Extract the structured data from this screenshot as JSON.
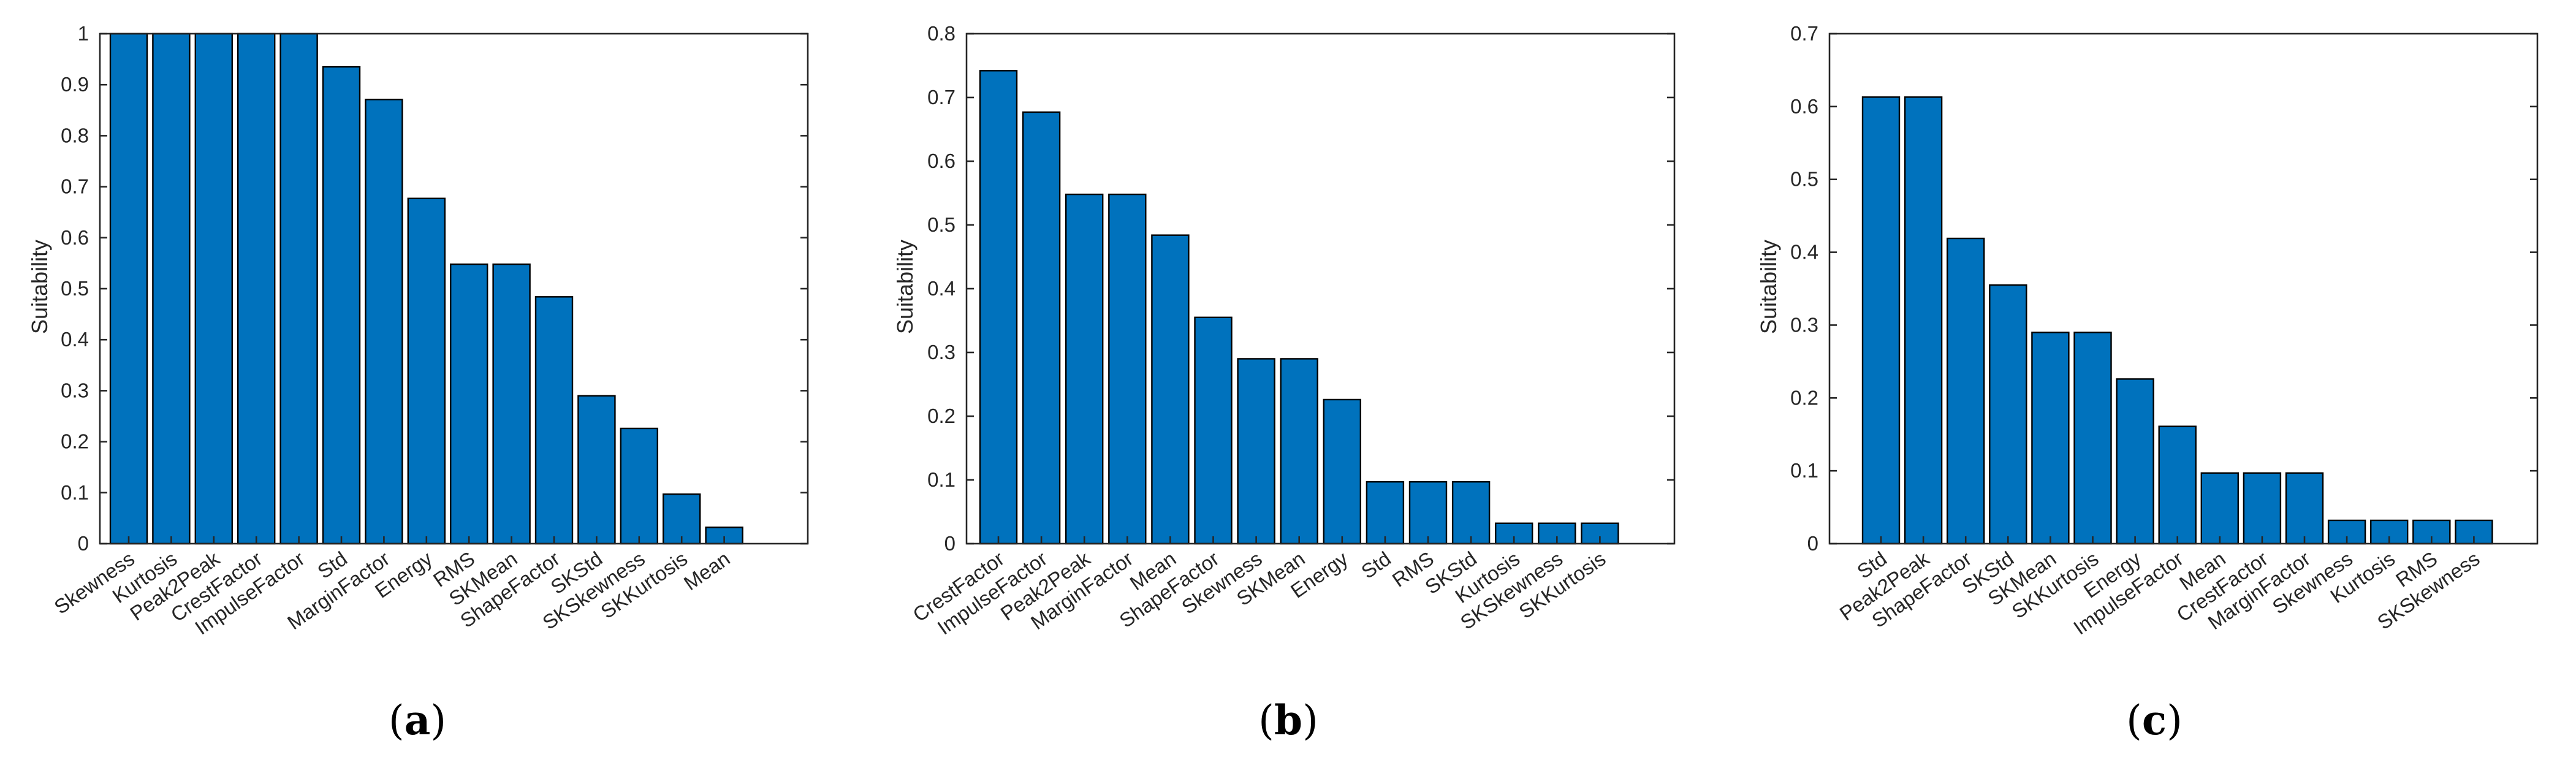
{
  "chart_data": [
    {
      "type": "bar",
      "panel": "a",
      "caption": {
        "open": "(",
        "letter": "a",
        "close": ")"
      },
      "ylabel": "Suitability",
      "xlabel": "",
      "ylim": [
        0,
        1
      ],
      "yticks": [
        "0",
        "0.1",
        "0.2",
        "0.3",
        "0.4",
        "0.5",
        "0.6",
        "0.7",
        "0.8",
        "0.9",
        "1"
      ],
      "categories": [
        "Skewness",
        "Kurtosis",
        "Peak2Peak",
        "CrestFactor",
        "ImpulseFactor",
        "Std",
        "MarginFactor",
        "Energy",
        "RMS",
        "SKMean",
        "ShapeFactor",
        "SKStd",
        "SKSkewness",
        "SKKurtosis",
        "Mean"
      ],
      "values": [
        1,
        1,
        1,
        1,
        1,
        0.935,
        0.871,
        0.677,
        0.548,
        0.548,
        0.484,
        0.29,
        0.226,
        0.097,
        0.032
      ],
      "color": "#0072BD"
    },
    {
      "type": "bar",
      "panel": "b",
      "caption": {
        "open": "(",
        "letter": "b",
        "close": ")"
      },
      "ylabel": "Suitability",
      "xlabel": "",
      "ylim": [
        0,
        0.8
      ],
      "yticks": [
        "0",
        "0.1",
        "0.2",
        "0.3",
        "0.4",
        "0.5",
        "0.6",
        "0.7",
        "0.8"
      ],
      "categories": [
        "CrestFactor",
        "ImpulseFactor",
        "Peak2Peak",
        "MarginFactor",
        "Mean",
        "ShapeFactor",
        "Skewness",
        "SKMean",
        "Energy",
        "Std",
        "RMS",
        "SKStd",
        "Kurtosis",
        "SKSkewness",
        "SKKurtosis"
      ],
      "values": [
        0.742,
        0.677,
        0.548,
        0.548,
        0.484,
        0.355,
        0.29,
        0.29,
        0.226,
        0.097,
        0.097,
        0.097,
        0.032,
        0.032,
        0.032
      ],
      "color": "#0072BD"
    },
    {
      "type": "bar",
      "panel": "c",
      "caption": {
        "open": "(",
        "letter": "c",
        "close": ")"
      },
      "ylabel": "Suitability",
      "xlabel": "",
      "ylim": [
        0,
        0.7
      ],
      "yticks": [
        "0",
        "0.1",
        "0.2",
        "0.3",
        "0.4",
        "0.5",
        "0.6",
        "0.7"
      ],
      "categories": [
        "Std",
        "Peak2Peak",
        "ShapeFactor",
        "SKStd",
        "SKMean",
        "SKKurtosis",
        "Energy",
        "ImpulseFactor",
        "Mean",
        "CrestFactor",
        "MarginFactor",
        "Skewness",
        "Kurtosis",
        "RMS",
        "SKSkewness"
      ],
      "values": [
        0.613,
        0.613,
        0.419,
        0.355,
        0.29,
        0.29,
        0.226,
        0.161,
        0.097,
        0.097,
        0.097,
        0.032,
        0.032,
        0.032,
        0.032
      ],
      "color": "#0072BD"
    }
  ]
}
